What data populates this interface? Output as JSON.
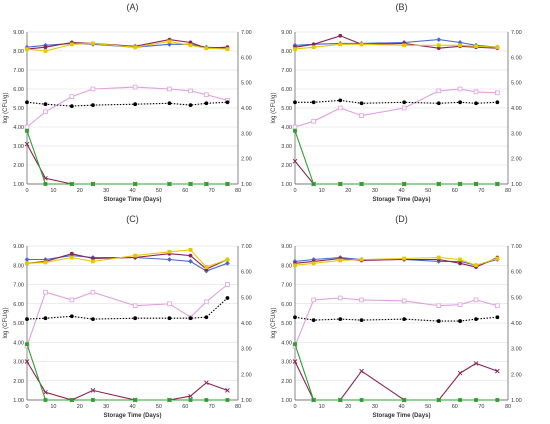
{
  "chart_data": [
    {
      "type": "line",
      "title": "(A)",
      "xlabel": "Storage Time (Days)",
      "ylabel": "log (CFU/g)",
      "xlim": [
        0,
        80
      ],
      "ylim": [
        1.0,
        9.0
      ],
      "y2lim": [
        1.0,
        7.0
      ],
      "x_ticks": [
        0,
        10,
        20,
        30,
        40,
        50,
        60,
        70,
        80
      ],
      "y_ticks": [
        "1.00",
        "2.00",
        "3.00",
        "4.00",
        "5.00",
        "6.00",
        "7.00",
        "8.00",
        "9.00"
      ],
      "y2_ticks": [
        "1.00",
        "2.00",
        "3.00",
        "4.00",
        "5.00",
        "6.00",
        "7.00"
      ],
      "series": [
        {
          "color": "#4a67d6",
          "marker": "diamond",
          "dash": "none",
          "axis": "left",
          "x": [
            0,
            7,
            17,
            25,
            41,
            54,
            62,
            68,
            76
          ],
          "y": [
            8.2,
            8.3,
            8.4,
            8.35,
            8.2,
            8.35,
            8.35,
            8.2,
            8.15
          ]
        },
        {
          "color": "#8b2252",
          "marker": "circle",
          "dash": "none",
          "axis": "left",
          "x": [
            0,
            7,
            17,
            25,
            41,
            54,
            62,
            68,
            76
          ],
          "y": [
            8.1,
            8.2,
            8.45,
            8.4,
            8.25,
            8.6,
            8.45,
            8.15,
            8.2
          ]
        },
        {
          "color": "#e6c800",
          "marker": "square",
          "dash": "none",
          "axis": "left",
          "x": [
            0,
            7,
            17,
            25,
            41,
            54,
            62,
            68,
            76
          ],
          "y": [
            8.1,
            8.0,
            8.35,
            8.4,
            8.2,
            8.5,
            8.3,
            8.15,
            8.1
          ]
        },
        {
          "color": "#e0a0e0",
          "marker": "square-open",
          "dash": "none",
          "axis": "left",
          "x": [
            0,
            7,
            17,
            25,
            41,
            54,
            62,
            68,
            76
          ],
          "y": [
            4.0,
            4.8,
            5.6,
            6.0,
            6.1,
            6.0,
            5.9,
            5.7,
            5.4
          ]
        },
        {
          "color": "#000000",
          "marker": "circle",
          "dash": "dotted",
          "axis": "left",
          "x": [
            0,
            7,
            17,
            25,
            41,
            54,
            62,
            68,
            76
          ],
          "y": [
            5.3,
            5.2,
            5.1,
            5.15,
            5.2,
            5.25,
            5.15,
            5.25,
            5.3
          ]
        },
        {
          "color": "#8b2252",
          "marker": "x",
          "dash": "none",
          "axis": "left",
          "x": [
            0,
            7,
            17,
            25,
            41,
            54,
            62,
            68,
            76
          ],
          "y": [
            3.1,
            1.3,
            1.0,
            1.0,
            1.0,
            1.0,
            1.0,
            1.0,
            1.0
          ]
        },
        {
          "color": "#2ca02c",
          "marker": "square",
          "dash": "none",
          "axis": "left",
          "x": [
            0,
            7,
            17,
            25,
            41,
            54,
            62,
            68,
            76
          ],
          "y": [
            3.8,
            1.0,
            1.0,
            1.0,
            1.0,
            1.0,
            1.0,
            1.0,
            1.0
          ]
        }
      ]
    },
    {
      "type": "line",
      "title": "(B)",
      "xlabel": "Storage Time (Days)",
      "ylabel": "log (CFU/g)",
      "xlim": [
        0,
        80
      ],
      "ylim": [
        1.0,
        9.0
      ],
      "y2lim": [
        1.0,
        7.0
      ],
      "x_ticks": [
        0,
        10,
        20,
        30,
        40,
        50,
        60,
        70,
        80
      ],
      "y_ticks": [
        "1.00",
        "2.00",
        "3.00",
        "4.00",
        "5.00",
        "6.00",
        "7.00",
        "8.00",
        "9.00"
      ],
      "y2_ticks": [
        "1.00",
        "2.00",
        "3.00",
        "4.00",
        "5.00",
        "6.00",
        "7.00"
      ],
      "series": [
        {
          "color": "#4a67d6",
          "marker": "diamond",
          "dash": "none",
          "axis": "left",
          "x": [
            0,
            7,
            17,
            25,
            41,
            54,
            62,
            68,
            76
          ],
          "y": [
            8.3,
            8.35,
            8.4,
            8.4,
            8.45,
            8.6,
            8.45,
            8.3,
            8.2
          ]
        },
        {
          "color": "#8b2252",
          "marker": "circle",
          "dash": "none",
          "axis": "left",
          "x": [
            0,
            7,
            17,
            25,
            41,
            54,
            62,
            68,
            76
          ],
          "y": [
            8.2,
            8.35,
            8.8,
            8.35,
            8.4,
            8.15,
            8.25,
            8.2,
            8.15
          ]
        },
        {
          "color": "#e6c800",
          "marker": "square",
          "dash": "none",
          "axis": "left",
          "x": [
            0,
            7,
            17,
            25,
            41,
            54,
            62,
            68,
            76
          ],
          "y": [
            8.1,
            8.2,
            8.35,
            8.35,
            8.3,
            8.3,
            8.3,
            8.25,
            8.2
          ]
        },
        {
          "color": "#e0a0e0",
          "marker": "square-open",
          "dash": "none",
          "axis": "left",
          "x": [
            0,
            7,
            17,
            25,
            41,
            54,
            62,
            68,
            76
          ],
          "y": [
            4.0,
            4.3,
            5.0,
            4.6,
            5.0,
            5.9,
            6.0,
            5.85,
            5.8
          ]
        },
        {
          "color": "#000000",
          "marker": "circle",
          "dash": "dotted",
          "axis": "left",
          "x": [
            0,
            7,
            17,
            25,
            41,
            54,
            62,
            68,
            76
          ],
          "y": [
            5.3,
            5.3,
            5.4,
            5.25,
            5.3,
            5.25,
            5.3,
            5.25,
            5.3
          ]
        },
        {
          "color": "#8b2252",
          "marker": "x",
          "dash": "none",
          "axis": "left",
          "x": [
            0,
            7,
            17,
            25,
            41,
            54,
            62,
            68,
            76
          ],
          "y": [
            2.2,
            1.0,
            1.0,
            1.0,
            1.0,
            1.0,
            1.0,
            1.0,
            1.0
          ]
        },
        {
          "color": "#2ca02c",
          "marker": "square",
          "dash": "none",
          "axis": "left",
          "x": [
            0,
            7,
            17,
            25,
            41,
            54,
            62,
            68,
            76
          ],
          "y": [
            3.8,
            1.0,
            1.0,
            1.0,
            1.0,
            1.0,
            1.0,
            1.0,
            1.0
          ]
        }
      ]
    },
    {
      "type": "line",
      "title": "(C)",
      "xlabel": "Storage Time (Days)",
      "ylabel": "log (CFU/g)",
      "xlim": [
        0,
        80
      ],
      "ylim": [
        1.0,
        9.0
      ],
      "y2lim": [
        1.0,
        7.0
      ],
      "x_ticks": [
        0,
        10,
        20,
        30,
        40,
        50,
        60,
        70,
        80
      ],
      "y_ticks": [
        "1.00",
        "2.00",
        "3.00",
        "4.00",
        "5.00",
        "6.00",
        "7.00",
        "8.00",
        "9.00"
      ],
      "y2_ticks": [
        "1.00",
        "2.00",
        "3.00",
        "4.00",
        "5.00",
        "6.00",
        "7.00"
      ],
      "series": [
        {
          "color": "#4a67d6",
          "marker": "diamond",
          "dash": "none",
          "axis": "left",
          "x": [
            0,
            7,
            17,
            25,
            41,
            54,
            62,
            68,
            76
          ],
          "y": [
            8.3,
            8.3,
            8.5,
            8.4,
            8.4,
            8.3,
            8.2,
            7.7,
            8.1
          ]
        },
        {
          "color": "#8b2252",
          "marker": "circle",
          "dash": "none",
          "axis": "left",
          "x": [
            0,
            7,
            17,
            25,
            41,
            54,
            62,
            68,
            76
          ],
          "y": [
            8.1,
            8.2,
            8.6,
            8.35,
            8.4,
            8.6,
            8.5,
            7.8,
            8.3
          ]
        },
        {
          "color": "#e6c800",
          "marker": "square",
          "dash": "none",
          "axis": "left",
          "x": [
            0,
            7,
            17,
            25,
            41,
            54,
            62,
            68,
            76
          ],
          "y": [
            8.1,
            8.15,
            8.4,
            8.2,
            8.5,
            8.7,
            8.8,
            7.9,
            8.3
          ]
        },
        {
          "color": "#e0a0e0",
          "marker": "square-open",
          "dash": "none",
          "axis": "left",
          "x": [
            0,
            7,
            17,
            25,
            41,
            54,
            62,
            68,
            76
          ],
          "y": [
            3.8,
            6.6,
            6.2,
            6.6,
            5.9,
            6.0,
            5.3,
            6.1,
            7.0
          ]
        },
        {
          "color": "#000000",
          "marker": "circle",
          "dash": "dotted",
          "axis": "left",
          "x": [
            0,
            7,
            17,
            25,
            41,
            54,
            62,
            68,
            76
          ],
          "y": [
            5.2,
            5.25,
            5.35,
            5.2,
            5.25,
            5.25,
            5.25,
            5.3,
            6.3
          ]
        },
        {
          "color": "#8b2252",
          "marker": "x",
          "dash": "none",
          "axis": "left",
          "x": [
            0,
            7,
            17,
            25,
            41,
            54,
            62,
            68,
            76
          ],
          "y": [
            3.0,
            1.4,
            1.0,
            1.5,
            1.0,
            1.0,
            1.2,
            1.9,
            1.5
          ]
        },
        {
          "color": "#2ca02c",
          "marker": "square",
          "dash": "none",
          "axis": "left",
          "x": [
            0,
            7,
            17,
            25,
            41,
            54,
            62,
            68,
            76
          ],
          "y": [
            3.9,
            1.0,
            1.0,
            1.0,
            1.0,
            1.0,
            1.0,
            1.0,
            1.0
          ]
        }
      ]
    },
    {
      "type": "line",
      "title": "(D)",
      "xlabel": "Storage Time (Days)",
      "ylabel": "log (CFU/g)",
      "xlim": [
        0,
        80
      ],
      "ylim": [
        1.0,
        9.0
      ],
      "y2lim": [
        1.0,
        7.0
      ],
      "x_ticks": [
        0,
        10,
        20,
        30,
        40,
        50,
        60,
        70,
        80
      ],
      "y_ticks": [
        "1.00",
        "2.00",
        "3.00",
        "4.00",
        "5.00",
        "6.00",
        "7.00",
        "8.00",
        "9.00"
      ],
      "y2_ticks": [
        "1.00",
        "2.00",
        "3.00",
        "4.00",
        "5.00",
        "6.00",
        "7.00"
      ],
      "series": [
        {
          "color": "#4a67d6",
          "marker": "diamond",
          "dash": "none",
          "axis": "left",
          "x": [
            0,
            7,
            17,
            25,
            41,
            54,
            62,
            68,
            76
          ],
          "y": [
            8.2,
            8.3,
            8.4,
            8.3,
            8.3,
            8.2,
            8.2,
            8.0,
            8.3
          ]
        },
        {
          "color": "#8b2252",
          "marker": "circle",
          "dash": "none",
          "axis": "left",
          "x": [
            0,
            7,
            17,
            25,
            41,
            54,
            62,
            68,
            76
          ],
          "y": [
            8.1,
            8.2,
            8.35,
            8.25,
            8.3,
            8.3,
            8.1,
            7.9,
            8.4
          ]
        },
        {
          "color": "#e6c800",
          "marker": "square",
          "dash": "none",
          "axis": "left",
          "x": [
            0,
            7,
            17,
            25,
            41,
            54,
            62,
            68,
            76
          ],
          "y": [
            8.0,
            8.1,
            8.25,
            8.3,
            8.35,
            8.4,
            8.3,
            8.0,
            8.35
          ]
        },
        {
          "color": "#e0a0e0",
          "marker": "square-open",
          "dash": "none",
          "axis": "left",
          "x": [
            0,
            7,
            17,
            25,
            41,
            54,
            62,
            68,
            76
          ],
          "y": [
            3.8,
            6.2,
            6.3,
            6.2,
            6.15,
            5.9,
            5.95,
            6.2,
            5.9
          ]
        },
        {
          "color": "#000000",
          "marker": "circle",
          "dash": "dotted",
          "axis": "left",
          "x": [
            0,
            7,
            17,
            25,
            41,
            54,
            62,
            68,
            76
          ],
          "y": [
            5.3,
            5.15,
            5.2,
            5.15,
            5.2,
            5.1,
            5.1,
            5.2,
            5.3
          ]
        },
        {
          "color": "#8b2252",
          "marker": "x",
          "dash": "none",
          "axis": "left",
          "x": [
            0,
            7,
            17,
            25,
            41,
            54,
            62,
            68,
            76
          ],
          "y": [
            3.0,
            1.0,
            1.0,
            2.5,
            1.0,
            1.0,
            2.4,
            2.9,
            2.5
          ]
        },
        {
          "color": "#2ca02c",
          "marker": "square",
          "dash": "none",
          "axis": "left",
          "x": [
            0,
            7,
            17,
            25,
            41,
            54,
            62,
            68,
            76
          ],
          "y": [
            3.9,
            1.0,
            1.0,
            1.0,
            1.0,
            1.0,
            1.0,
            1.0,
            1.0
          ]
        }
      ]
    }
  ]
}
